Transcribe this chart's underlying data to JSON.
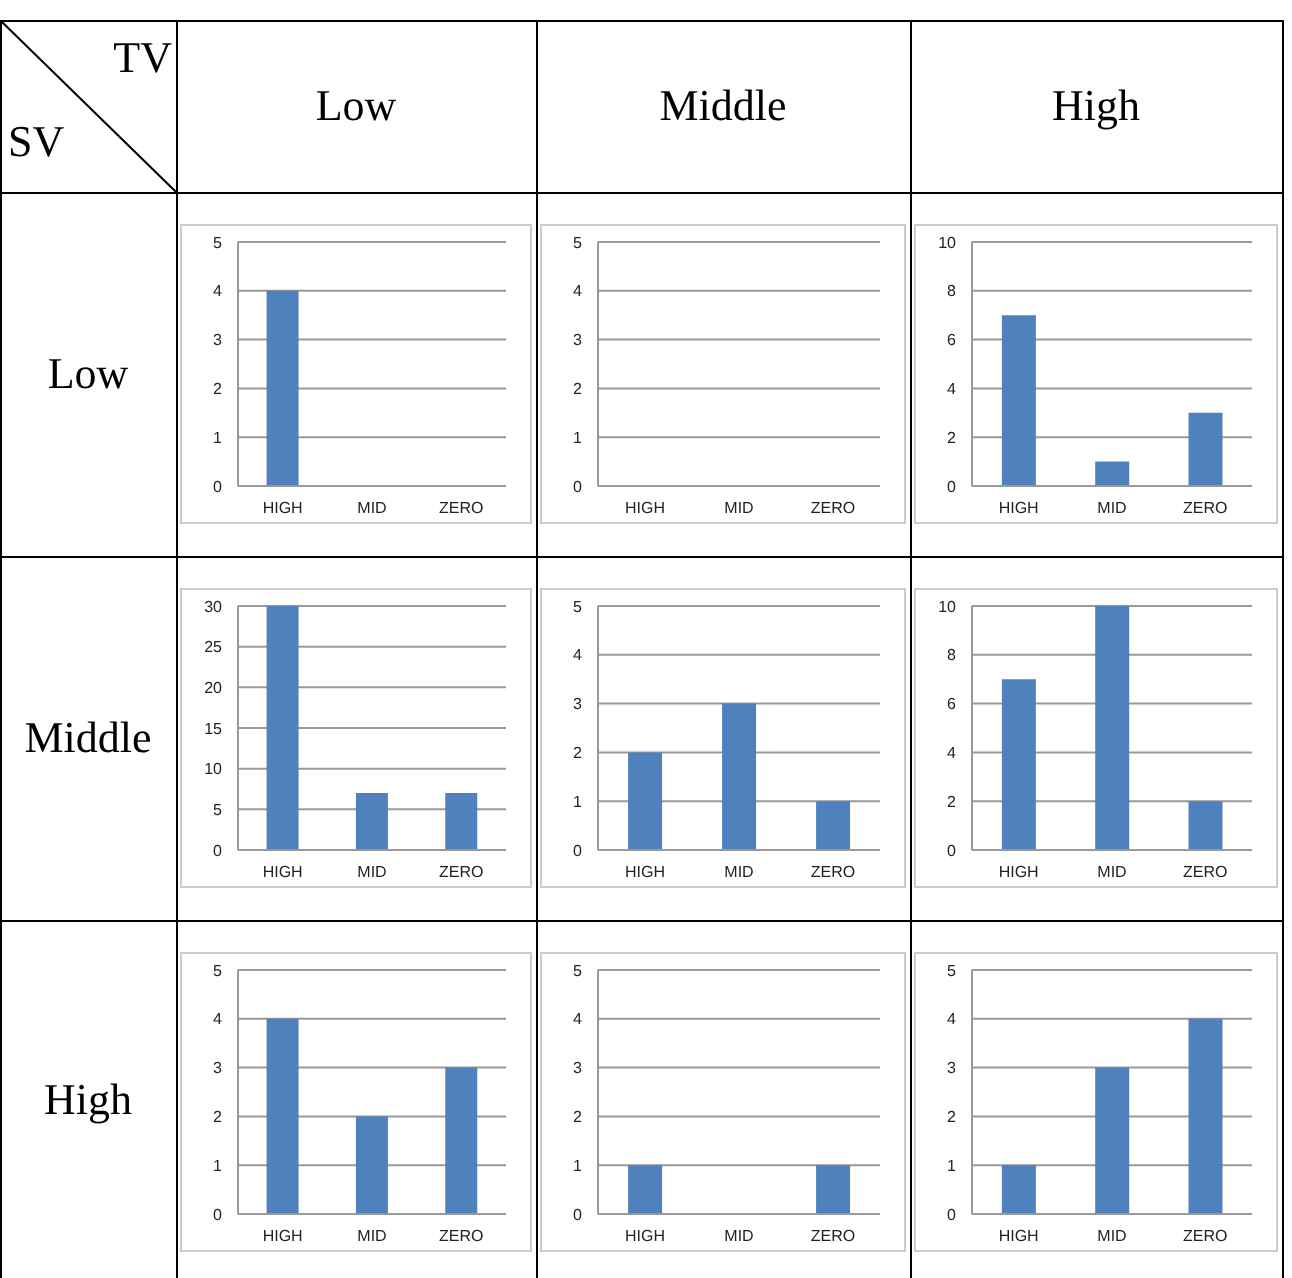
{
  "chart_data": [
    {
      "type": "bar",
      "categories": [
        "HIGH",
        "MID",
        "ZERO"
      ],
      "values": [
        4,
        0,
        0
      ],
      "color": "#4f81bd",
      "ylim": [
        0,
        5
      ],
      "yticks": [
        0,
        1,
        2,
        3,
        4,
        5
      ],
      "grid": "y"
    },
    {
      "type": "bar",
      "categories": [
        "HIGH",
        "MID",
        "ZERO"
      ],
      "values": [
        0,
        0,
        0
      ],
      "color": "#4f81bd",
      "ylim": [
        0,
        5
      ],
      "yticks": [
        0,
        1,
        2,
        3,
        4,
        5
      ],
      "grid": "y"
    },
    {
      "type": "bar",
      "categories": [
        "HIGH",
        "MID",
        "ZERO"
      ],
      "values": [
        7,
        1,
        3
      ],
      "color": "#4f81bd",
      "ylim": [
        0,
        10
      ],
      "yticks": [
        0,
        2,
        4,
        6,
        8,
        10
      ],
      "grid": "y"
    },
    {
      "type": "bar",
      "categories": [
        "HIGH",
        "MID",
        "ZERO"
      ],
      "values": [
        30,
        7,
        7
      ],
      "color": "#4f81bd",
      "ylim": [
        0,
        30
      ],
      "yticks": [
        0,
        5,
        10,
        15,
        20,
        25,
        30
      ],
      "grid": "y"
    },
    {
      "type": "bar",
      "categories": [
        "HIGH",
        "MID",
        "ZERO"
      ],
      "values": [
        2,
        3,
        1
      ],
      "color": "#4f81bd",
      "ylim": [
        0,
        5
      ],
      "yticks": [
        0,
        1,
        2,
        3,
        4,
        5
      ],
      "grid": "y"
    },
    {
      "type": "bar",
      "categories": [
        "HIGH",
        "MID",
        "ZERO"
      ],
      "values": [
        7,
        10,
        2
      ],
      "color": "#4f81bd",
      "ylim": [
        0,
        10
      ],
      "yticks": [
        0,
        2,
        4,
        6,
        8,
        10
      ],
      "grid": "y"
    },
    {
      "type": "bar",
      "categories": [
        "HIGH",
        "MID",
        "ZERO"
      ],
      "values": [
        4,
        2,
        3
      ],
      "color": "#4f81bd",
      "ylim": [
        0,
        5
      ],
      "yticks": [
        0,
        1,
        2,
        3,
        4,
        5
      ],
      "grid": "y"
    },
    {
      "type": "bar",
      "categories": [
        "HIGH",
        "MID",
        "ZERO"
      ],
      "values": [
        1,
        0,
        1
      ],
      "color": "#4f81bd",
      "ylim": [
        0,
        5
      ],
      "yticks": [
        0,
        1,
        2,
        3,
        4,
        5
      ],
      "grid": "y"
    },
    {
      "type": "bar",
      "categories": [
        "HIGH",
        "MID",
        "ZERO"
      ],
      "values": [
        1,
        3,
        4
      ],
      "color": "#4f81bd",
      "ylim": [
        0,
        5
      ],
      "yticks": [
        0,
        1,
        2,
        3,
        4,
        5
      ],
      "grid": "y"
    },
    {
      "type": "other",
      "annotations": [
        "TV",
        "SV",
        "Low",
        "Middle",
        "High",
        "Low",
        "Middle",
        "High"
      ]
    }
  ]
}
